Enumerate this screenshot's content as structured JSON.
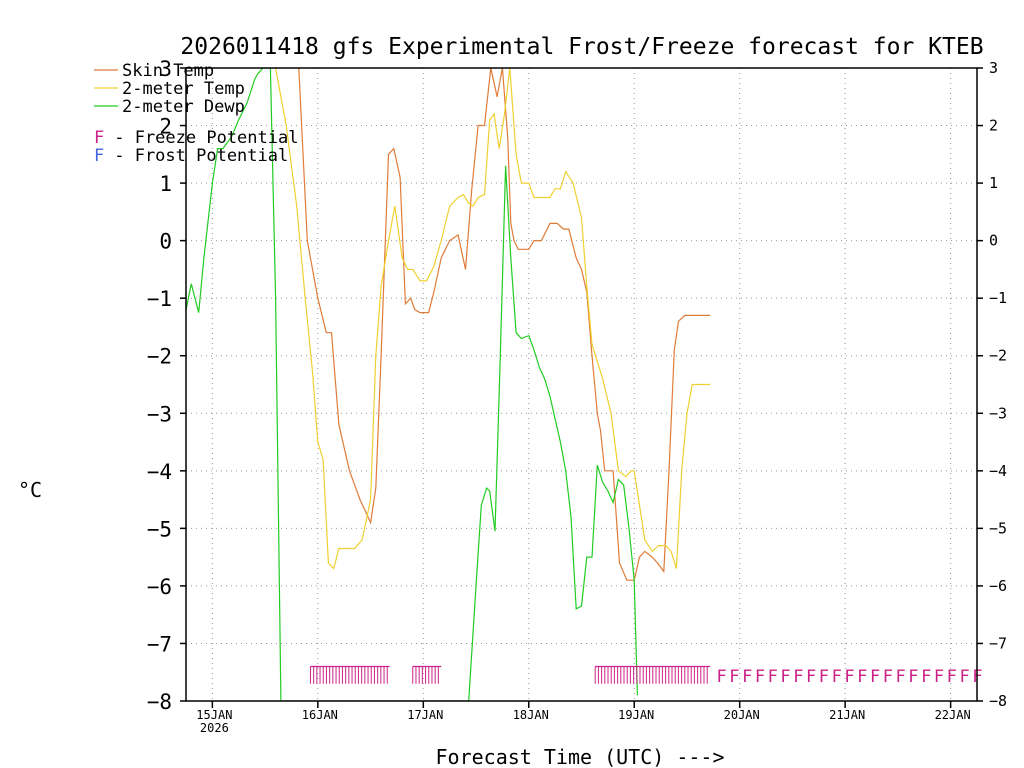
{
  "chart_data": {
    "type": "line",
    "title": "2026011418 gfs Experimental Frost/Freeze forecast for KTEB",
    "xlabel": "Forecast Time (UTC) --->",
    "ylabel": "°C",
    "x_unit": "days since 15JAN 00Z",
    "xlim": [
      -0.25,
      7.25
    ],
    "ylim": [
      -8,
      3
    ],
    "y_ticks": [
      -8,
      -7,
      -6,
      -5,
      -4,
      -3,
      -2,
      -1,
      0,
      1,
      2,
      3
    ],
    "y_tick_labels": [
      "−8",
      "−7",
      "−6",
      "−5",
      "−4",
      "−3",
      "−2",
      "−1",
      "0",
      "1",
      "2",
      "3"
    ],
    "x_ticks": [
      {
        "x": 0,
        "label": "15JAN",
        "sublabel": "2026"
      },
      {
        "x": 1,
        "label": "16JAN",
        "sublabel": ""
      },
      {
        "x": 2,
        "label": "17JAN",
        "sublabel": ""
      },
      {
        "x": 3,
        "label": "18JAN",
        "sublabel": ""
      },
      {
        "x": 4,
        "label": "19JAN",
        "sublabel": ""
      },
      {
        "x": 5,
        "label": "20JAN",
        "sublabel": ""
      },
      {
        "x": 6,
        "label": "21JAN",
        "sublabel": ""
      },
      {
        "x": 7,
        "label": "22JAN",
        "sublabel": ""
      }
    ],
    "grid": true,
    "legend": [
      {
        "label": "Skin Temp",
        "color": "#e07b39"
      },
      {
        "label": "2-meter Temp",
        "color": "#f0d030"
      },
      {
        "label": "2-meter Dewp",
        "color": "#22cc22"
      }
    ],
    "potential_legend": [
      {
        "letter": "F",
        "text": " - Freeze Potential",
        "color": "#cc2288"
      },
      {
        "letter": "F",
        "text": " - Frost Potential",
        "color": "#4466dd"
      }
    ],
    "series": [
      {
        "name": "Skin Temp",
        "color": "#e07b39",
        "x": [
          0.82,
          0.9,
          0.96,
          1.0,
          1.08,
          1.13,
          1.2,
          1.3,
          1.4,
          1.5,
          1.55,
          1.6,
          1.67,
          1.72,
          1.78,
          1.83,
          1.88,
          1.92,
          1.97,
          2.05,
          2.1,
          2.17,
          2.25,
          2.33,
          2.4,
          2.46,
          2.52,
          2.58,
          2.64,
          2.7,
          2.75,
          2.8,
          2.83,
          2.86,
          2.9,
          2.93,
          2.97,
          3.0,
          3.05,
          3.12,
          3.2,
          3.27,
          3.33,
          3.38,
          3.45,
          3.5,
          3.55,
          3.6,
          3.65,
          3.68,
          3.72,
          3.8,
          3.86,
          3.93,
          4.0,
          4.05,
          4.1,
          4.17,
          4.22,
          4.28,
          4.33,
          4.38,
          4.42,
          4.48,
          4.54,
          4.6,
          4.67,
          4.72
        ],
        "values": [
          3.0,
          0.0,
          -0.6,
          -1.0,
          -1.6,
          -1.6,
          -3.2,
          -4.0,
          -4.5,
          -4.9,
          -4.3,
          -2.0,
          1.5,
          1.6,
          1.1,
          -1.1,
          -1.0,
          -1.2,
          -1.25,
          -1.25,
          -0.9,
          -0.3,
          0.0,
          0.1,
          -0.5,
          0.9,
          2.0,
          2.0,
          3.0,
          2.5,
          3.0,
          1.8,
          0.3,
          0.0,
          -0.15,
          -0.15,
          -0.15,
          -0.15,
          0.0,
          0.0,
          0.3,
          0.3,
          0.2,
          0.2,
          -0.3,
          -0.5,
          -0.9,
          -2.0,
          -3.0,
          -3.3,
          -4.0,
          -4.0,
          -5.6,
          -5.9,
          -5.9,
          -5.5,
          -5.4,
          -5.5,
          -5.6,
          -5.75,
          -4.0,
          -1.9,
          -1.4,
          -1.3,
          -1.3,
          -1.3,
          -1.3,
          -1.3
        ]
      },
      {
        "name": "2-meter Temp",
        "color": "#f0d030",
        "x": [
          0.6,
          0.7,
          0.8,
          0.88,
          0.95,
          1.0,
          1.05,
          1.1,
          1.15,
          1.2,
          1.28,
          1.35,
          1.42,
          1.5,
          1.55,
          1.6,
          1.67,
          1.73,
          1.8,
          1.85,
          1.9,
          1.97,
          2.03,
          2.1,
          2.17,
          2.25,
          2.33,
          2.38,
          2.43,
          2.47,
          2.52,
          2.58,
          2.63,
          2.67,
          2.72,
          2.77,
          2.82,
          2.88,
          2.93,
          3.0,
          3.05,
          3.12,
          3.2,
          3.25,
          3.3,
          3.35,
          3.42,
          3.5,
          3.55,
          3.6,
          3.65,
          3.7,
          3.78,
          3.85,
          3.92,
          3.97,
          4.0,
          4.05,
          4.1,
          4.17,
          4.23,
          4.3,
          4.35,
          4.4,
          4.45,
          4.5,
          4.55,
          4.62,
          4.68,
          4.72
        ],
        "values": [
          3.0,
          2.0,
          0.6,
          -1.0,
          -2.3,
          -3.5,
          -3.8,
          -5.6,
          -5.7,
          -5.35,
          -5.35,
          -5.35,
          -5.2,
          -4.5,
          -2.0,
          -0.8,
          0.0,
          0.6,
          -0.3,
          -0.5,
          -0.5,
          -0.7,
          -0.7,
          -0.45,
          0.0,
          0.6,
          0.75,
          0.8,
          0.65,
          0.6,
          0.75,
          0.8,
          2.1,
          2.2,
          1.6,
          2.2,
          3.0,
          1.5,
          1.0,
          1.0,
          0.75,
          0.75,
          0.75,
          0.9,
          0.9,
          1.2,
          1.0,
          0.4,
          -0.8,
          -1.8,
          -2.1,
          -2.4,
          -3.0,
          -4.0,
          -4.1,
          -4.0,
          -4.0,
          -4.6,
          -5.2,
          -5.4,
          -5.3,
          -5.3,
          -5.4,
          -5.7,
          -4.0,
          -3.0,
          -2.5,
          -2.5,
          -2.5,
          -2.5
        ]
      },
      {
        "name": "2-meter Dewp",
        "color": "#22cc22",
        "x": [
          -0.25,
          -0.2,
          -0.13,
          -0.08,
          0.0,
          0.05,
          0.1,
          0.18,
          0.25,
          0.33,
          0.4,
          0.43,
          0.48,
          0.55,
          0.6,
          0.65,
          2.43,
          2.5,
          2.55,
          2.6,
          2.63,
          2.68,
          2.73,
          2.78,
          2.83,
          2.88,
          2.93,
          3.0,
          3.05,
          3.1,
          3.15,
          3.2,
          3.25,
          3.3,
          3.35,
          3.4,
          3.45,
          3.5,
          3.55,
          3.6,
          3.65,
          3.7,
          3.75,
          3.8,
          3.85,
          3.9,
          3.95,
          4.0,
          4.03
        ],
        "values": [
          -1.2,
          -0.75,
          -1.25,
          -0.3,
          1.0,
          1.6,
          1.6,
          1.8,
          2.1,
          2.4,
          2.8,
          2.9,
          3.0,
          3.0,
          -1.0,
          -8.0,
          -8.0,
          -6.0,
          -4.6,
          -4.3,
          -4.35,
          -5.05,
          -2.0,
          1.3,
          -0.3,
          -1.6,
          -1.7,
          -1.65,
          -1.9,
          -2.2,
          -2.4,
          -2.7,
          -3.1,
          -3.5,
          -4.0,
          -4.8,
          -6.4,
          -6.35,
          -5.5,
          -5.5,
          -3.9,
          -4.2,
          -4.35,
          -4.55,
          -4.15,
          -4.25,
          -5.0,
          -5.9,
          -7.9
        ]
      }
    ],
    "freeze_potential_runs": [
      {
        "x_start": 0.93,
        "x_end": 1.68
      },
      {
        "x_start": 1.9,
        "x_end": 2.17
      },
      {
        "x_start": 3.63,
        "x_end": 4.72
      }
    ],
    "freeze_potential_letters": "FFFFFFFFFFFFFFFFFFFFF",
    "freeze_potential_x_start": 4.78,
    "freeze_potential_x_end": 7.3
  }
}
